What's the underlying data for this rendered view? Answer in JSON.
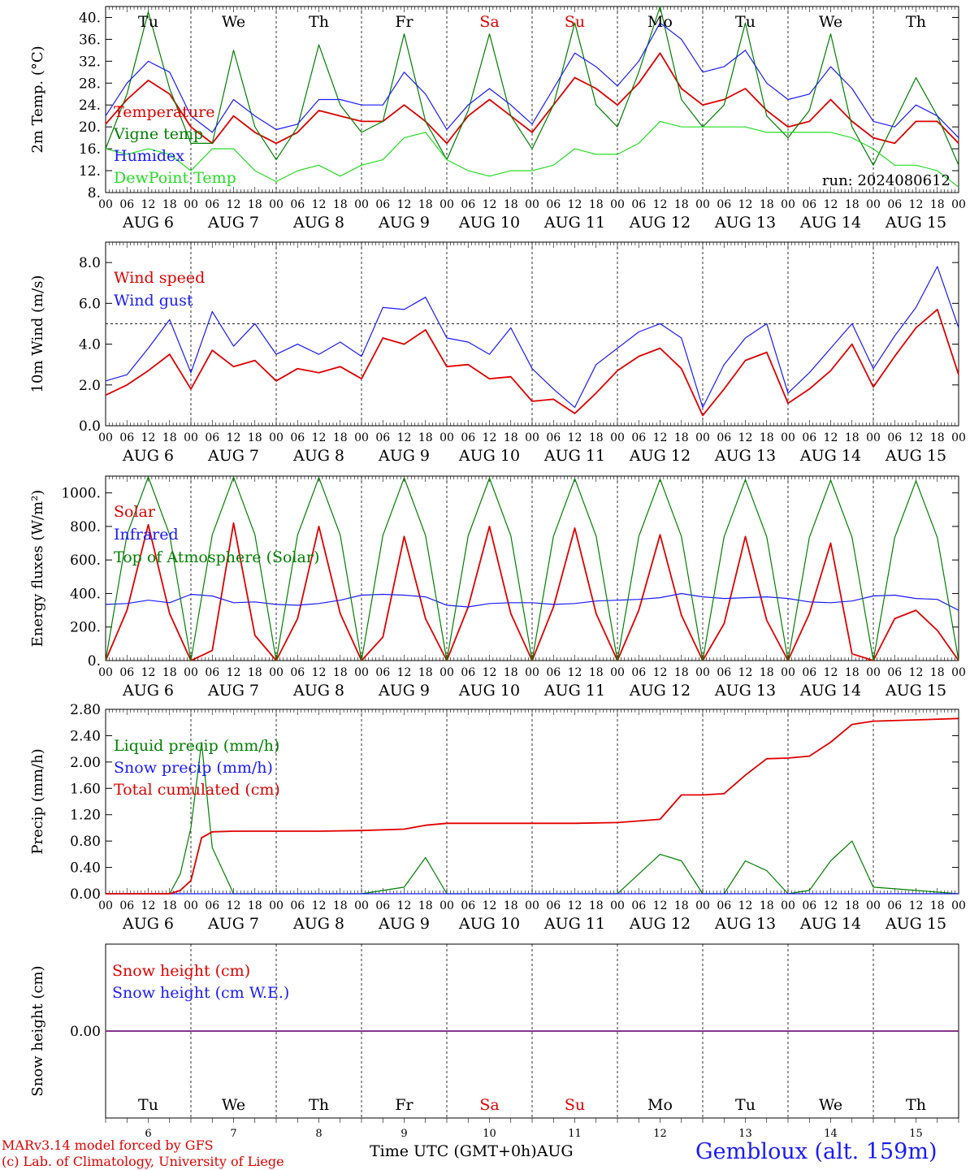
{
  "run_label": "run: 2024080612",
  "x_caption": "Time UTC (GMT+0h)AUG",
  "station": "Gembloux (alt. 159m)",
  "credits": [
    "MARv3.14 model forced by GFS",
    "(c) Lab. of Climatology, University of Liege"
  ],
  "days": [
    {
      "abbr": "Tu",
      "date": "6",
      "weekend": false
    },
    {
      "abbr": "We",
      "date": "7",
      "weekend": false
    },
    {
      "abbr": "Th",
      "date": "8",
      "weekend": false
    },
    {
      "abbr": "Fr",
      "date": "9",
      "weekend": false
    },
    {
      "abbr": "Sa",
      "date": "10",
      "weekend": true
    },
    {
      "abbr": "Su",
      "date": "11",
      "weekend": true
    },
    {
      "abbr": "Mo",
      "date": "12",
      "weekend": false
    },
    {
      "abbr": "Tu",
      "date": "13",
      "weekend": false
    },
    {
      "abbr": "We",
      "date": "14",
      "weekend": false
    },
    {
      "abbr": "Th",
      "date": "15",
      "weekend": false
    }
  ],
  "hour_labels": [
    "00",
    "06",
    "12",
    "18"
  ],
  "month_label": "AUG",
  "colors": {
    "red": "#e00000",
    "blue": "#1a1aff",
    "green": "#008000",
    "lightgreen": "#22dd22",
    "purple": "#7a2080",
    "weekend": "#ff0000"
  },
  "chart_data": [
    {
      "type": "line",
      "ylabel": "2m Temp. (°C)",
      "ylim": [
        8,
        42
      ],
      "yticks": [
        "8.",
        "12.",
        "16.",
        "20.",
        "24.",
        "28.",
        "32.",
        "36.",
        "40."
      ],
      "x_hours": [
        0,
        6,
        12,
        18,
        24,
        30,
        36,
        42,
        48,
        54,
        60,
        66,
        72,
        78,
        84,
        90,
        96,
        102,
        108,
        114,
        120,
        126,
        132,
        138,
        144,
        150,
        156,
        162,
        168,
        174,
        180,
        186,
        192,
        198,
        204,
        210,
        216,
        222,
        228,
        234,
        240
      ],
      "series": [
        {
          "name": "Temperature",
          "color": "red",
          "values": [
            20.5,
            25,
            28.5,
            26,
            20,
            17,
            22,
            19,
            17,
            19,
            23,
            22,
            21,
            21,
            24,
            21,
            17,
            22,
            25,
            22,
            19,
            24,
            29,
            27,
            24,
            28,
            33.5,
            27,
            24,
            25,
            27,
            23,
            20,
            21,
            25,
            21,
            18,
            17,
            21,
            21,
            17
          ]
        },
        {
          "name": "Vigne temp",
          "color": "green",
          "values": [
            16,
            26,
            41,
            27,
            17,
            17,
            34,
            20,
            14,
            20,
            35,
            24,
            19,
            21,
            37,
            21,
            14,
            23,
            37,
            22,
            16,
            24,
            39,
            24,
            20,
            30,
            42,
            25,
            20,
            24,
            39,
            22,
            18,
            23,
            37,
            20,
            13,
            21,
            29,
            22,
            13
          ]
        },
        {
          "name": "Humidex",
          "color": "blue",
          "values": [
            22,
            28,
            32,
            30,
            22,
            19,
            25,
            22,
            19.5,
            20.5,
            25,
            25,
            24,
            24,
            30,
            26,
            19.5,
            24,
            27,
            24,
            20.5,
            27,
            33.5,
            31,
            27.5,
            32,
            39,
            36,
            30,
            31,
            34,
            28,
            25,
            26,
            31,
            27,
            21,
            20,
            24,
            22,
            18
          ]
        },
        {
          "name": "DewPoint Temp",
          "color": "lightgreen",
          "values": [
            16,
            15,
            16,
            15,
            12,
            16,
            16,
            12,
            10,
            12,
            13,
            11,
            13,
            14,
            18,
            19,
            14,
            12,
            11,
            12,
            12,
            13,
            16,
            15,
            15,
            17,
            21,
            20,
            20,
            20,
            20,
            19,
            19,
            19,
            19,
            18,
            16,
            13,
            13,
            12,
            9
          ]
        }
      ]
    },
    {
      "type": "line",
      "ylabel": "10m Wind (m/s)",
      "ylim": [
        0,
        9
      ],
      "yticks": [
        "0.0",
        "2.0",
        "4.0",
        "6.0",
        "8.0"
      ],
      "reference_line": 5,
      "x_hours": [
        0,
        6,
        12,
        18,
        24,
        30,
        36,
        42,
        48,
        54,
        60,
        66,
        72,
        78,
        84,
        90,
        96,
        102,
        108,
        114,
        120,
        126,
        132,
        138,
        144,
        150,
        156,
        162,
        168,
        174,
        180,
        186,
        192,
        198,
        204,
        210,
        216,
        222,
        228,
        234,
        240
      ],
      "series": [
        {
          "name": "Wind speed",
          "color": "red",
          "values": [
            1.5,
            2.0,
            2.7,
            3.5,
            1.8,
            3.7,
            2.9,
            3.2,
            2.2,
            2.8,
            2.6,
            2.9,
            2.3,
            4.3,
            4.0,
            4.7,
            2.9,
            3.0,
            2.3,
            2.4,
            1.2,
            1.3,
            0.6,
            1.6,
            2.7,
            3.4,
            3.8,
            2.8,
            0.5,
            1.8,
            3.2,
            3.6,
            1.1,
            1.8,
            2.7,
            4.0,
            1.9,
            3.4,
            4.8,
            5.7,
            2.5
          ]
        },
        {
          "name": "Wind gust",
          "color": "blue",
          "values": [
            2.2,
            2.5,
            3.8,
            5.2,
            2.6,
            5.6,
            3.9,
            5.0,
            3.5,
            4.0,
            3.5,
            4.1,
            3.4,
            5.8,
            5.7,
            6.3,
            4.3,
            4.1,
            3.5,
            4.8,
            2.8,
            1.8,
            0.9,
            3.0,
            3.8,
            4.6,
            5.0,
            4.3,
            0.9,
            3.0,
            4.3,
            5.0,
            1.6,
            2.6,
            3.8,
            5.0,
            2.8,
            4.4,
            5.8,
            7.8,
            4.8
          ]
        }
      ]
    },
    {
      "type": "line",
      "ylabel": "Energy fluxes (W/m²)",
      "ylim": [
        0,
        1100
      ],
      "yticks": [
        "0.",
        "200.",
        "400.",
        "600.",
        "800.",
        "1000."
      ],
      "x_hours": [
        0,
        6,
        12,
        18,
        24,
        30,
        36,
        42,
        48,
        54,
        60,
        66,
        72,
        78,
        84,
        90,
        96,
        102,
        108,
        114,
        120,
        126,
        132,
        138,
        144,
        150,
        156,
        162,
        168,
        174,
        180,
        186,
        192,
        198,
        204,
        210,
        216,
        222,
        228,
        234,
        240
      ],
      "series": [
        {
          "name": "Solar",
          "color": "red",
          "values": [
            0,
            300,
            810,
            280,
            0,
            60,
            820,
            150,
            0,
            250,
            800,
            280,
            0,
            140,
            740,
            250,
            0,
            320,
            800,
            280,
            0,
            320,
            790,
            280,
            0,
            300,
            750,
            270,
            0,
            220,
            740,
            240,
            0,
            280,
            700,
            40,
            0,
            250,
            300,
            180,
            0
          ]
        },
        {
          "name": "Infrared",
          "color": "blue",
          "values": [
            335,
            340,
            360,
            345,
            395,
            385,
            345,
            350,
            335,
            330,
            340,
            360,
            390,
            395,
            390,
            380,
            330,
            320,
            340,
            345,
            345,
            335,
            340,
            355,
            360,
            365,
            375,
            400,
            380,
            370,
            375,
            380,
            370,
            350,
            345,
            355,
            385,
            390,
            370,
            365,
            300
          ]
        },
        {
          "name": "Top of Atmosphere (Solar)",
          "color": "green",
          "values": [
            0,
            750,
            1095,
            750,
            0,
            750,
            1094,
            750,
            0,
            748,
            1092,
            748,
            0,
            746,
            1090,
            746,
            0,
            744,
            1088,
            744,
            0,
            742,
            1085,
            742,
            0,
            740,
            1082,
            740,
            0,
            738,
            1079,
            738,
            0,
            735,
            1076,
            735,
            0,
            733,
            1072,
            733,
            0
          ]
        }
      ]
    },
    {
      "type": "line",
      "ylabel": "Precip (mm/h)",
      "ylim": [
        0,
        2.8
      ],
      "yticks": [
        "0.00",
        "0.40",
        "0.80",
        "1.20",
        "1.60",
        "2.00",
        "2.40",
        "2.80"
      ],
      "x_hours": [
        0,
        6,
        12,
        18,
        21,
        24,
        27,
        30,
        36,
        48,
        60,
        72,
        84,
        90,
        96,
        108,
        120,
        132,
        144,
        156,
        162,
        168,
        174,
        180,
        186,
        192,
        198,
        204,
        210,
        216,
        228,
        240
      ],
      "series": [
        {
          "name": "Liquid precip (mm/h)",
          "color": "green",
          "values": [
            0,
            0,
            0,
            0,
            0.3,
            1.0,
            2.3,
            0.7,
            0,
            0,
            0,
            0,
            0.1,
            0.55,
            0,
            0,
            0,
            0,
            0,
            0.6,
            0.5,
            0,
            0,
            0.5,
            0.35,
            0,
            0.05,
            0.5,
            0.8,
            0.1,
            0.05,
            0
          ]
        },
        {
          "name": "Snow precip (mm/h)",
          "color": "blue",
          "values": [
            0,
            0,
            0,
            0,
            0,
            0,
            0,
            0,
            0,
            0,
            0,
            0,
            0,
            0,
            0,
            0,
            0,
            0,
            0,
            0,
            0,
            0,
            0,
            0,
            0,
            0,
            0,
            0,
            0,
            0,
            0,
            0
          ]
        },
        {
          "name": "Total cumulated (cm)",
          "color": "red",
          "values": [
            0,
            0,
            0,
            0,
            0.05,
            0.2,
            0.85,
            0.94,
            0.95,
            0.95,
            0.95,
            0.96,
            0.98,
            1.04,
            1.07,
            1.07,
            1.07,
            1.07,
            1.08,
            1.13,
            1.5,
            1.5,
            1.52,
            1.8,
            2.05,
            2.06,
            2.09,
            2.3,
            2.57,
            2.62,
            2.64,
            2.66
          ]
        }
      ]
    },
    {
      "type": "line",
      "ylabel": "Snow height (cm)",
      "ylim": [
        -1,
        1
      ],
      "yticks": [
        "0.00"
      ],
      "x_hours": [
        0,
        240
      ],
      "series": [
        {
          "name": "Snow height (cm)",
          "color": "red",
          "values": [
            0,
            0
          ]
        },
        {
          "name": "Snow height (cm W.E.)",
          "color": "blue",
          "values": [
            0,
            0
          ]
        }
      ]
    }
  ]
}
